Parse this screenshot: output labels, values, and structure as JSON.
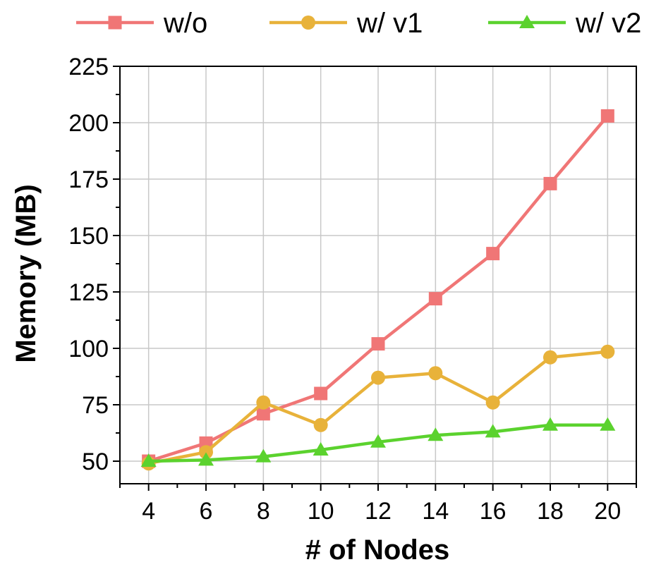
{
  "chart_data": {
    "type": "line",
    "title": "",
    "xlabel": "# of Nodes",
    "ylabel": "Memory (MB)",
    "x": [
      4,
      6,
      8,
      10,
      12,
      14,
      16,
      18,
      20
    ],
    "xlim": [
      3,
      21
    ],
    "ylim": [
      40,
      225
    ],
    "xticks": [
      4,
      6,
      8,
      10,
      12,
      14,
      16,
      18,
      20
    ],
    "yticks": [
      50,
      75,
      100,
      125,
      150,
      175,
      200,
      225
    ],
    "grid": true,
    "legend_position": "top",
    "series": [
      {
        "name": "w/o",
        "marker": "square",
        "color": "#f07676",
        "values": [
          50,
          58,
          71,
          80,
          102,
          122,
          142,
          173,
          203
        ]
      },
      {
        "name": "w/ v1",
        "marker": "circle",
        "color": "#e8b23a",
        "values": [
          49,
          54,
          76,
          66,
          87,
          89,
          76,
          96,
          98.5
        ]
      },
      {
        "name": "w/ v2",
        "marker": "triangle",
        "color": "#5bd22e",
        "values": [
          50,
          50.5,
          52,
          55,
          58.5,
          61.5,
          63,
          66,
          66
        ]
      }
    ]
  }
}
